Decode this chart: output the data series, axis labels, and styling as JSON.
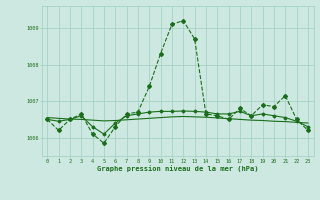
{
  "x": [
    0,
    1,
    2,
    3,
    4,
    5,
    6,
    7,
    8,
    9,
    10,
    11,
    12,
    13,
    14,
    15,
    16,
    17,
    18,
    19,
    20,
    21,
    22,
    23
  ],
  "line_main": [
    1006.5,
    1006.2,
    1006.5,
    1006.65,
    1006.1,
    1005.85,
    1006.3,
    1006.65,
    1006.7,
    1007.4,
    1008.3,
    1009.1,
    1009.2,
    1008.7,
    1006.65,
    1006.6,
    1006.5,
    1006.8,
    1006.6,
    1006.9,
    1006.85,
    1007.15,
    1006.5,
    1006.2
  ],
  "line_trend": [
    1006.55,
    1006.53,
    1006.51,
    1006.5,
    1006.48,
    1006.46,
    1006.47,
    1006.49,
    1006.51,
    1006.53,
    1006.55,
    1006.57,
    1006.58,
    1006.57,
    1006.56,
    1006.54,
    1006.52,
    1006.5,
    1006.48,
    1006.47,
    1006.45,
    1006.44,
    1006.42,
    1006.4
  ],
  "line_smooth": [
    1006.5,
    1006.45,
    1006.5,
    1006.6,
    1006.3,
    1006.1,
    1006.4,
    1006.6,
    1006.65,
    1006.7,
    1006.72,
    1006.72,
    1006.73,
    1006.72,
    1006.7,
    1006.65,
    1006.65,
    1006.72,
    1006.6,
    1006.65,
    1006.6,
    1006.55,
    1006.45,
    1006.3
  ],
  "ylim": [
    1005.5,
    1009.6
  ],
  "yticks": [
    1006,
    1007,
    1008,
    1009
  ],
  "xticks": [
    0,
    1,
    2,
    3,
    4,
    5,
    6,
    7,
    8,
    9,
    10,
    11,
    12,
    13,
    14,
    15,
    16,
    17,
    18,
    19,
    20,
    21,
    22,
    23
  ],
  "xlabel": "Graphe pression niveau de la mer (hPa)",
  "line_color": "#1a6e1a",
  "bg_color": "#cde8e0",
  "grid_color": "#9ecfbf",
  "label_color": "#1a6e1a"
}
